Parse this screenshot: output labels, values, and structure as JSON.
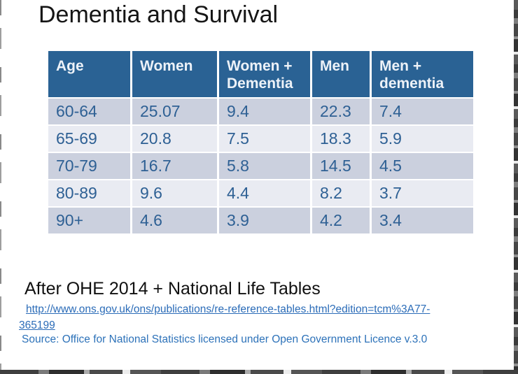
{
  "slide": {
    "title": "Dementia and Survival"
  },
  "table": {
    "columns": [
      "Age",
      "Women",
      "Women + Dementia",
      "Men",
      "Men + dementia"
    ],
    "rows": [
      [
        "60-64",
        "25.07",
        "9.4",
        "22.3",
        "7.4"
      ],
      [
        "65-69",
        "20.8",
        "7.5",
        "18.3",
        "5.9"
      ],
      [
        "70-79",
        "16.7",
        "5.8",
        "14.5",
        "4.5"
      ],
      [
        "80-89",
        "9.6",
        "4.4",
        "8.2",
        "3.7"
      ],
      [
        "90+",
        "4.6",
        "3.9",
        "4.2",
        "3.4"
      ]
    ]
  },
  "footer": {
    "attribution": "After OHE 2014 + National Life Tables",
    "link": {
      "line1": "http://www.ons.gov.uk/ons/publications/re-reference-tables.html?edition=tcm%3A77-",
      "line2": "365199"
    },
    "source": "Source: Office for National Statistics licensed under Open Government Licence v.3.0"
  },
  "colors": {
    "header_bg": "#2a6294",
    "header_text": "#edf2f8",
    "row_dark": "#cbd0de",
    "row_light": "#e9ebf2",
    "body_text": "#2e6094",
    "link": "#2b6cb8",
    "source_text": "#2d72b9"
  }
}
